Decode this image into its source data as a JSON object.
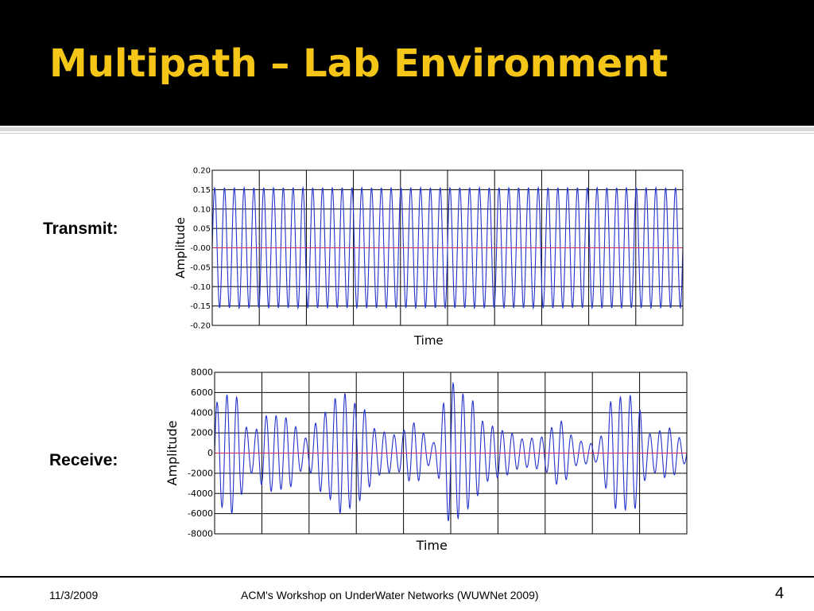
{
  "slide": {
    "title": "Multipath – Lab Environment",
    "transmit_label": "Transmit:",
    "receive_label": "Receive:",
    "footer_date": "11/3/2009",
    "footer_center": "ACM's Workshop on UnderWater Networks (WUWNet 2009)",
    "page_number": "4",
    "colors": {
      "title": "#f5c518",
      "signal": "#2233cc",
      "zero_line": "#cc2255"
    }
  },
  "chart_data": [
    {
      "type": "line",
      "xlabel": "Time",
      "ylabel": "Amplitude",
      "ylim": [
        -0.2,
        0.2
      ],
      "yticks": [
        "0.20",
        "0.15",
        "0.10",
        "0.05",
        "-0.00",
        "-0.05",
        "-0.10",
        "-0.15",
        "-0.20"
      ],
      "ytick_values": [
        0.2,
        0.15,
        0.1,
        0.05,
        0,
        -0.05,
        -0.1,
        -0.15,
        -0.2
      ],
      "x_gridlines": 10,
      "grid": true,
      "series": [
        {
          "cycles": 48,
          "amplitude": 0.155
        }
      ]
    },
    {
      "type": "line",
      "xlabel": "Time",
      "ylabel": "Amplitude",
      "ylim": [
        -8000,
        8000
      ],
      "yticks": [
        "8000",
        "6000",
        "4000",
        "2000",
        "0",
        "-2000",
        "-4000",
        "-6000",
        "-8000"
      ],
      "ytick_values": [
        8000,
        6000,
        4000,
        2000,
        0,
        -2000,
        -4000,
        -6000,
        -8000
      ],
      "x_gridlines": 10,
      "grid": true,
      "series": [
        {
          "cycles": 48,
          "envelope": [
            5000,
            6000,
            2000,
            3800,
            3500,
            1500,
            4000,
            6000,
            4700,
            2200,
            1800,
            3000,
            1000,
            7000,
            5500,
            2800,
            2200,
            1400,
            1600,
            3200,
            1200,
            900,
            5500,
            5700,
            1900,
            2500,
            1000
          ]
        }
      ]
    }
  ]
}
